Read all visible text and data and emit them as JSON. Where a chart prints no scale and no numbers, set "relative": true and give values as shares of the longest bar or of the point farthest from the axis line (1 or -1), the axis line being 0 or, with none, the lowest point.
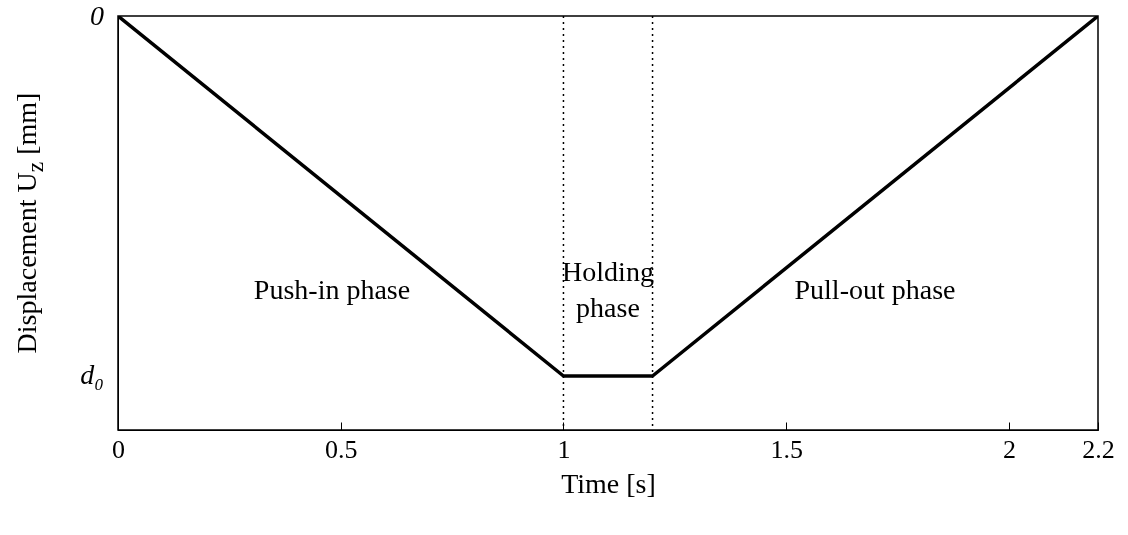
{
  "chart_data": {
    "type": "line",
    "relative": true,
    "xlabel": "Time [s]",
    "ylabel": "Displacement U$_{z}$ [mm]",
    "x": [
      0,
      1,
      1.2,
      2.2
    ],
    "series": [
      {
        "color": "#000000",
        "values": [
          0,
          -1,
          -1,
          0
        ]
      }
    ],
    "xlim": [
      0,
      2.2
    ],
    "xticks": [
      0,
      0.5,
      1,
      1.5,
      2,
      2.2
    ],
    "ref_lines": [
      {
        "axis": "x",
        "value": 1,
        "color": "#000000",
        "line_style": "dotted"
      },
      {
        "axis": "x",
        "value": 1.2,
        "color": "#000000",
        "line_style": "dotted"
      }
    ],
    "annotations": [
      "0",
      "d₀",
      "Push-in phase",
      "Holding\nphase",
      "Pull-out phase"
    ],
    "marker": "none",
    "line_style": "solid"
  }
}
